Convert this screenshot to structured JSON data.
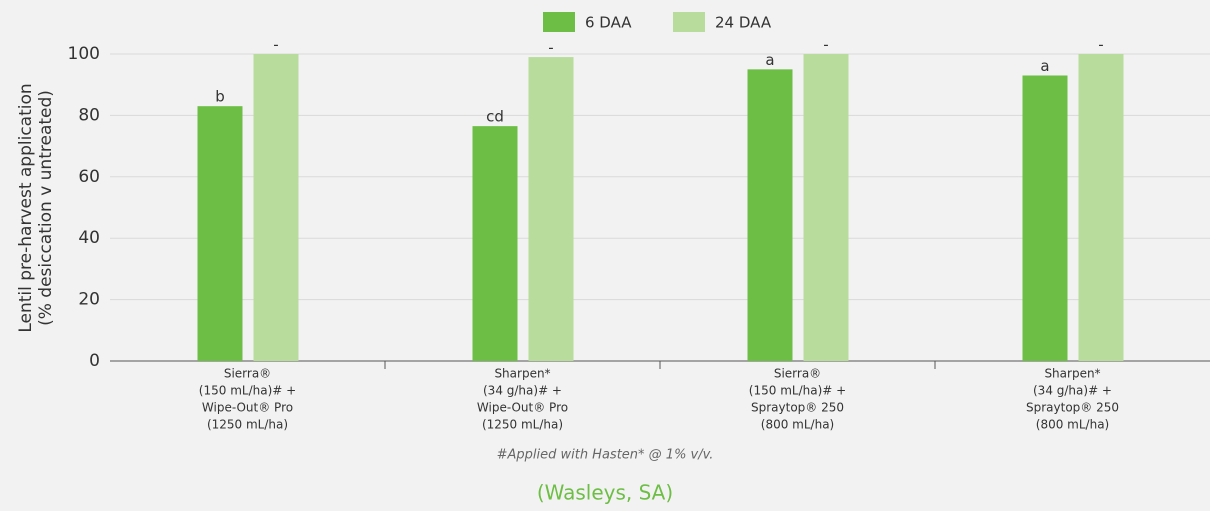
{
  "chart_data": {
    "type": "bar",
    "y_label": [
      "Lentil pre-harvest application",
      "(% desiccation v untreated)"
    ],
    "categories": [
      [
        "Sierra®",
        "(150 mL/ha)# +",
        "Wipe-Out® Pro",
        "(1250 mL/ha)"
      ],
      [
        "Sharpen*",
        "(34 g/ha)# +",
        "Wipe-Out® Pro",
        "(1250 mL/ha)"
      ],
      [
        "Sierra®",
        "(150 mL/ha)# +",
        "Spraytop® 250",
        "(800 mL/ha)"
      ],
      [
        "Sharpen*",
        "(34 g/ha)# +",
        "Spraytop® 250",
        "(800 mL/ha)"
      ]
    ],
    "series": [
      {
        "name": "6 DAA",
        "color": "#6dbe45",
        "values": [
          83,
          76.5,
          95,
          93
        ],
        "letters": [
          "b",
          "cd",
          "a",
          "a"
        ]
      },
      {
        "name": "24 DAA",
        "color": "#b7dc9c",
        "values": [
          100,
          99,
          100,
          100
        ],
        "letters": [
          "-",
          "-",
          "-",
          "-"
        ]
      }
    ],
    "ylim": [
      0,
      100
    ],
    "yticks": [
      0,
      20,
      40,
      60,
      80,
      100
    ],
    "grid": true,
    "footnote": "#Applied with Hasten* @ 1% v/v.",
    "source": "(Wasleys, SA)"
  }
}
